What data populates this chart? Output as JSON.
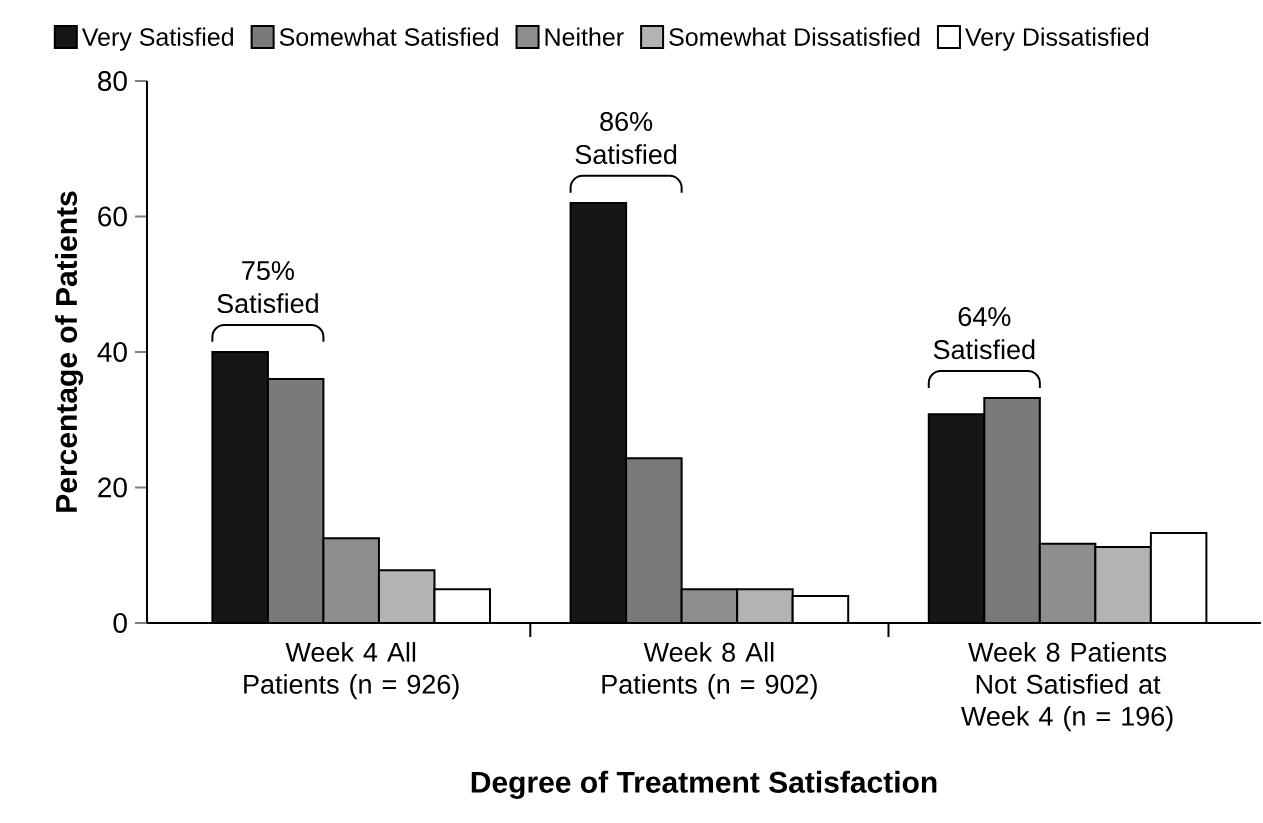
{
  "chart_data": {
    "type": "bar",
    "xlabel": "Degree of Treatment Satisfaction",
    "ylabel": "Percentage of Patients",
    "categories": [
      "Week 4 All Patients (n = 926)",
      "Week 8 All Patients (n = 902)",
      "Week 8 Patients Not Satisfied at Week 4 (n = 196)"
    ],
    "series": [
      {
        "name": "Very Satisfied",
        "color": "#161616",
        "values": [
          40,
          62,
          30.8
        ]
      },
      {
        "name": "Somewhat Satisfied",
        "color": "#7a7a7a",
        "values": [
          36,
          24.3,
          33.2
        ]
      },
      {
        "name": "Neither",
        "color": "#8e8e8e",
        "values": [
          12.5,
          5,
          11.7
        ]
      },
      {
        "name": "Somewhat Dissatisfied",
        "color": "#b3b3b3",
        "values": [
          7.8,
          5,
          11.2
        ]
      },
      {
        "name": "Very Dissatisfied",
        "color": "#ffffff",
        "values": [
          5,
          4,
          13.3
        ]
      }
    ],
    "annotations": [
      "75% Satisfied",
      "86% Satisfied",
      "64% Satisfied"
    ],
    "ylim": [
      0,
      80
    ],
    "yticks": [
      0,
      20,
      40,
      60,
      80
    ],
    "legend": "top"
  }
}
